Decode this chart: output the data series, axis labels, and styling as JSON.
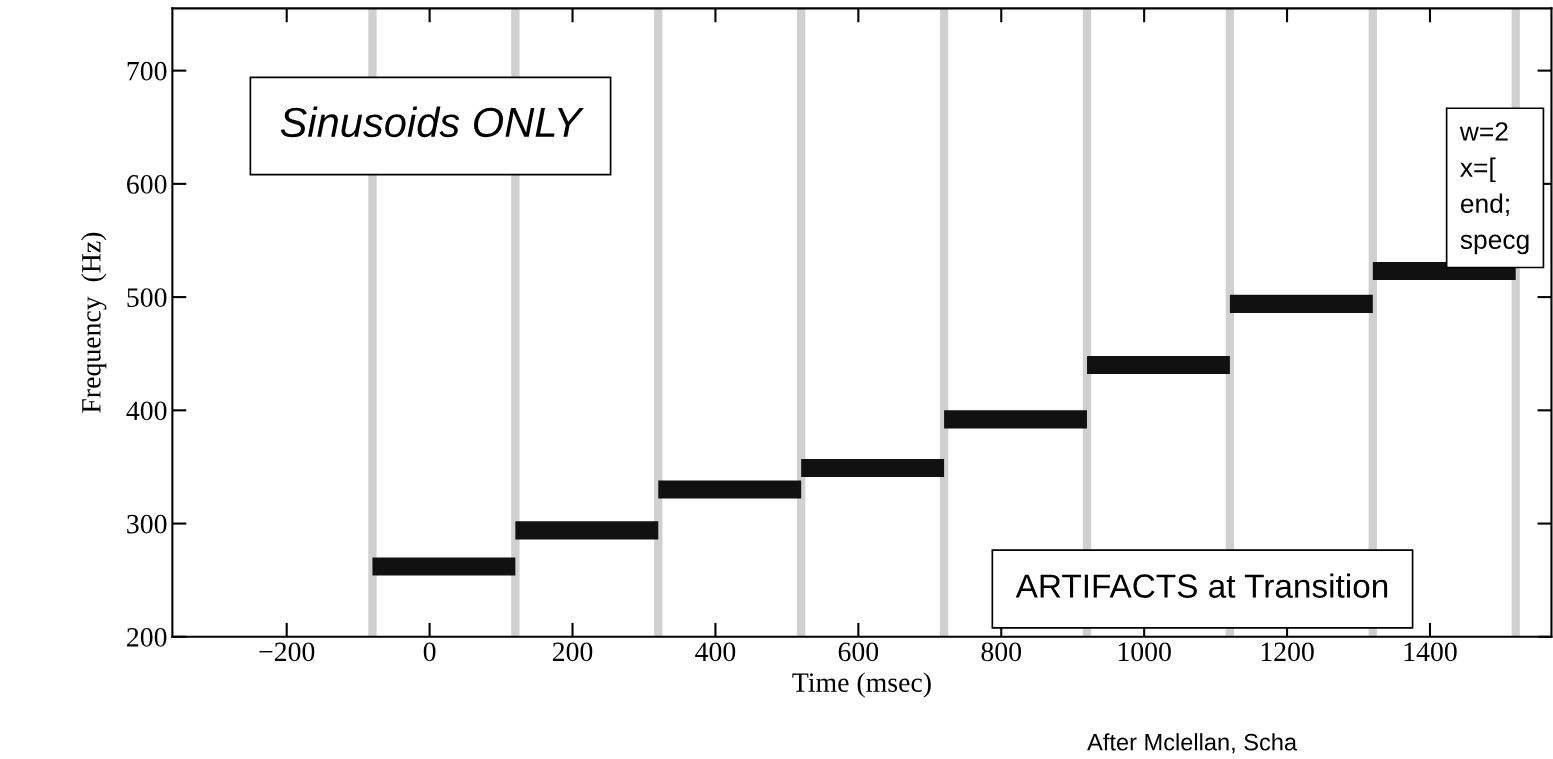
{
  "chart_data": {
    "type": "line",
    "xlabel": "Time (msec)",
    "ylabel": "Frequency  (Hz)",
    "series": [
      {
        "color": "#111111",
        "x": [
          -80,
          120
        ],
        "values": [
          262,
          262
        ]
      },
      {
        "color": "#111111",
        "x": [
          120,
          320
        ],
        "values": [
          294,
          294
        ]
      },
      {
        "color": "#111111",
        "x": [
          320,
          520
        ],
        "values": [
          330,
          330
        ]
      },
      {
        "color": "#111111",
        "x": [
          520,
          720
        ],
        "values": [
          349,
          349
        ]
      },
      {
        "color": "#111111",
        "x": [
          720,
          920
        ],
        "values": [
          392,
          392
        ]
      },
      {
        "color": "#111111",
        "x": [
          920,
          1120
        ],
        "values": [
          440,
          440
        ]
      },
      {
        "color": "#111111",
        "x": [
          1120,
          1320
        ],
        "values": [
          494,
          494
        ]
      },
      {
        "color": "#111111",
        "x": [
          1320,
          1520
        ],
        "values": [
          523,
          523
        ]
      }
    ],
    "xlim": [
      -360,
      1570
    ],
    "xticks": [
      -200,
      0,
      200,
      400,
      600,
      800,
      1000,
      1200,
      1400
    ],
    "ylim": [
      200,
      755
    ],
    "yticks": [
      200,
      300,
      400,
      500,
      600,
      700
    ],
    "ref_lines": [
      {
        "axis": "x",
        "value": -80,
        "color": "#d0d0d0"
      },
      {
        "axis": "x",
        "value": 120,
        "color": "#d0d0d0"
      },
      {
        "axis": "x",
        "value": 320,
        "color": "#d0d0d0"
      },
      {
        "axis": "x",
        "value": 520,
        "color": "#d0d0d0"
      },
      {
        "axis": "x",
        "value": 720,
        "color": "#d0d0d0"
      },
      {
        "axis": "x",
        "value": 920,
        "color": "#d0d0d0"
      },
      {
        "axis": "x",
        "value": 1120,
        "color": "#d0d0d0"
      },
      {
        "axis": "x",
        "value": 1320,
        "color": "#d0d0d0"
      },
      {
        "axis": "x",
        "value": 1520,
        "color": "#d0d0d0"
      }
    ],
    "annotations": [
      "Sinusoids ONLY",
      "w=2\nx=[\nend;\nspecg",
      "ARTIFACTS at Transition",
      "After Mclellan, Scha"
    ],
    "grid": false,
    "legend": false,
    "marker": "none",
    "line_style": "solid"
  }
}
